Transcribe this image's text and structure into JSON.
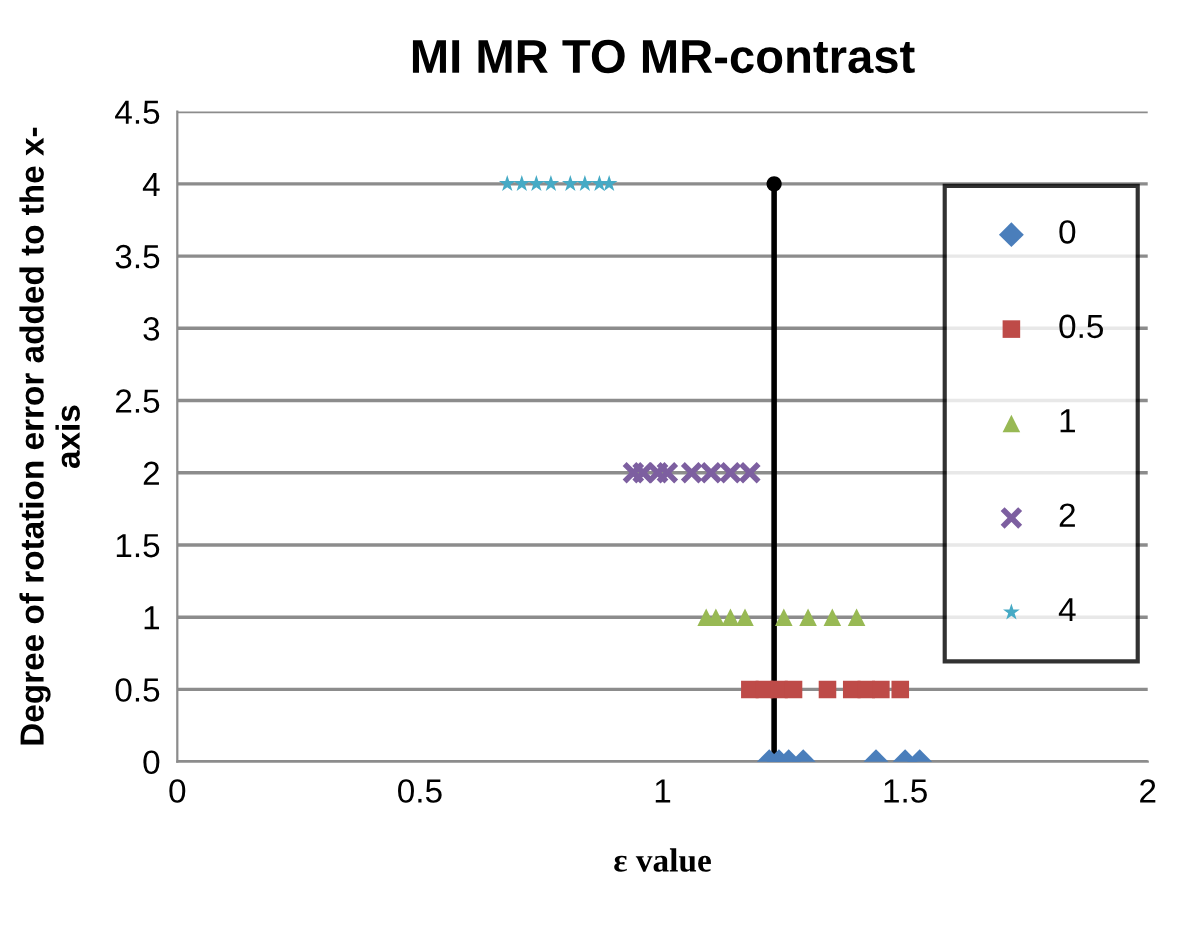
{
  "chart_data": {
    "type": "scatter",
    "title": "MI MR TO MR-contrast",
    "xlabel": "ε value",
    "ylabel": "Degree of rotation error added to the x-\naxis",
    "xlim": [
      0,
      2
    ],
    "xticks": [
      0,
      0.5,
      1,
      1.5,
      2
    ],
    "ylim": [
      0,
      4.5
    ],
    "yticks": [
      0,
      0.5,
      1,
      1.5,
      2,
      2.5,
      3,
      3.5,
      4,
      4.5
    ],
    "grid": "y",
    "legend": "right",
    "series": [
      {
        "type": "line",
        "color": "#000000",
        "marker": "none",
        "x": [
          1.23,
          1.23
        ],
        "values": [
          0,
          4
        ]
      },
      {
        "type": "scatter",
        "color": "#000000",
        "marker": "circle",
        "x": [
          1.23
        ],
        "values": [
          4
        ]
      },
      {
        "name": "0",
        "color": "#4a7ebb",
        "marker": "diamond",
        "x": [
          1.22,
          1.24,
          1.26,
          1.29,
          1.44,
          1.5,
          1.53
        ],
        "values": [
          0,
          0,
          0,
          0,
          0,
          0,
          0
        ]
      },
      {
        "name": "0.5",
        "color": "#be4b48",
        "marker": "square",
        "x": [
          1.18,
          1.21,
          1.24,
          1.27,
          1.34,
          1.39,
          1.42,
          1.45,
          1.49
        ],
        "values": [
          0.5,
          0.5,
          0.5,
          0.5,
          0.5,
          0.5,
          0.5,
          0.5,
          0.5
        ]
      },
      {
        "name": "1",
        "color": "#98b954",
        "marker": "triangle",
        "x": [
          1.09,
          1.11,
          1.14,
          1.17,
          1.25,
          1.3,
          1.35,
          1.4
        ],
        "values": [
          1,
          1,
          1,
          1,
          1,
          1,
          1,
          1
        ]
      },
      {
        "name": "2",
        "color": "#7d5fa0",
        "marker": "cross",
        "x": [
          0.94,
          0.96,
          0.99,
          1.01,
          1.06,
          1.1,
          1.14,
          1.18
        ],
        "values": [
          2,
          2,
          2,
          2,
          2,
          2,
          2,
          2
        ]
      },
      {
        "name": "4",
        "color": "#46aac5",
        "marker": "star",
        "x": [
          0.68,
          0.71,
          0.74,
          0.77,
          0.81,
          0.84,
          0.87,
          0.89
        ],
        "values": [
          4,
          4,
          4,
          4,
          4,
          4,
          4,
          4
        ]
      }
    ]
  }
}
